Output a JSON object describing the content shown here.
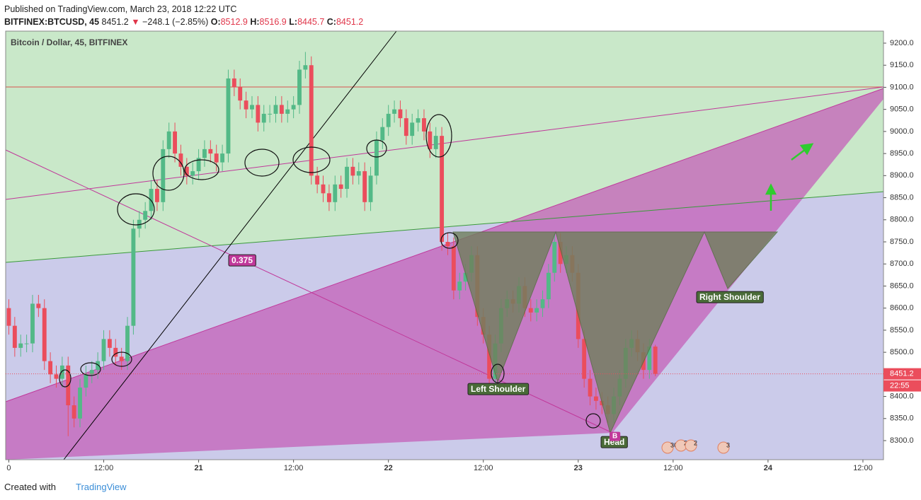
{
  "header": {
    "published": "Published on TradingView.com, March 23, 2018 12:22 UTC",
    "symbol": "BITFINEX:BTCUSD, 45",
    "price": "8451.2",
    "arrow": "▼",
    "change": "−248.1 (−2.85%)",
    "ohlc": [
      {
        "key": "O:",
        "value": "8512.9"
      },
      {
        "key": "H:",
        "value": "8516.9"
      },
      {
        "key": "L:",
        "value": "8445.7"
      },
      {
        "key": "C:",
        "value": "8451.2"
      }
    ]
  },
  "chart_data": {
    "type": "candlestick",
    "title": "Bitcoin / Dollar, 45, BITFINEX",
    "x": [
      0,
      0.75,
      1.5,
      2.25,
      3,
      3.75,
      4.5,
      5.25,
      6,
      6.75,
      7.5,
      8.25,
      9,
      9.75,
      10.5,
      11.25,
      12,
      12.75,
      13.5,
      14.25,
      15,
      15.75,
      16.5,
      17.25,
      18,
      18.75,
      19.5,
      20.25,
      21,
      21.75,
      22.5,
      23.25,
      24,
      24.75,
      25.5,
      26.25,
      27,
      27.75,
      28.5,
      29.25,
      30,
      30.75,
      31.5,
      32.25,
      33,
      33.75,
      34.5,
      35.25,
      36,
      36.75,
      37.5,
      38.25,
      39,
      39.75,
      40.5,
      41.25,
      42,
      42.75,
      43.5,
      44.25,
      45,
      45.75,
      46.5,
      47.25,
      48,
      48.75,
      49.5,
      50.25,
      51,
      51.75,
      52.5,
      53.25,
      54,
      54.75,
      55.5,
      56.25,
      57,
      57.75,
      58.5,
      59.25,
      60,
      60.75,
      61.5,
      62.25,
      63,
      63.75,
      64.5,
      65.25,
      66,
      66.75,
      67.5,
      68.25,
      69,
      69.75,
      70.5,
      71.25,
      72,
      72.75,
      73.5,
      74.25,
      75,
      75.75,
      76.5,
      77.25,
      78,
      78.75,
      79.5,
      80.25,
      81,
      81.75
    ],
    "open": [
      8600,
      8560,
      8510,
      8520,
      8520,
      8610,
      8600,
      8480,
      8450,
      8440,
      8470,
      8380,
      8350,
      8420,
      8450,
      8460,
      8480,
      8530,
      8510,
      8490,
      8480,
      8560,
      8780,
      8800,
      8820,
      8870,
      8840,
      8960,
      9000,
      8950,
      8920,
      8900,
      8910,
      8940,
      8960,
      8950,
      8930,
      8950,
      9120,
      9100,
      9070,
      9050,
      9060,
      9020,
      9040,
      9040,
      9060,
      9040,
      9050,
      9060,
      9140,
      9150,
      8900,
      8880,
      8860,
      8840,
      8880,
      8870,
      8920,
      8900,
      8910,
      8840,
      8900,
      8980,
      9010,
      9040,
      9050,
      9030,
      8990,
      9020,
      9030,
      9000,
      8960,
      8990,
      8750,
      8740,
      8640,
      8660,
      8680,
      8720,
      8580,
      8540,
      8440,
      8520,
      8600,
      8620,
      8610,
      8650,
      8600,
      8590,
      8600,
      8620,
      8680,
      8750,
      8700,
      8720,
      8680,
      8530,
      8440,
      8400,
      8390,
      8380,
      8360,
      8400,
      8440,
      8510,
      8530,
      8500,
      8460,
      8512.9
    ],
    "high": [
      8620,
      8580,
      8540,
      8540,
      8630,
      8630,
      8620,
      8500,
      8470,
      8490,
      8490,
      8400,
      8440,
      8470,
      8480,
      8500,
      8550,
      8550,
      8530,
      8510,
      8580,
      8800,
      8820,
      8840,
      8890,
      8890,
      8980,
      9020,
      9020,
      8970,
      8940,
      8930,
      8960,
      8980,
      8980,
      8970,
      8970,
      9140,
      9140,
      9120,
      9090,
      9080,
      9080,
      9060,
      9060,
      9080,
      9080,
      9070,
      9080,
      9160,
      9180,
      9170,
      8920,
      8900,
      8880,
      8900,
      8900,
      8940,
      8940,
      8930,
      8930,
      8920,
      9000,
      9030,
      9060,
      9070,
      9070,
      9050,
      9040,
      9050,
      9050,
      9020,
      9010,
      9010,
      8770,
      8760,
      8680,
      8700,
      8740,
      8740,
      8600,
      8560,
      8540,
      8620,
      8640,
      8640,
      8670,
      8670,
      8620,
      8620,
      8640,
      8700,
      8770,
      8770,
      8740,
      8740,
      8700,
      8550,
      8460,
      8420,
      8410,
      8400,
      8420,
      8460,
      8530,
      8550,
      8550,
      8520,
      8530,
      8516.9
    ],
    "low": [
      8540,
      8490,
      8490,
      8500,
      8500,
      8580,
      8460,
      8430,
      8420,
      8420,
      8310,
      8330,
      8330,
      8400,
      8430,
      8440,
      8460,
      8490,
      8470,
      8460,
      8460,
      8540,
      8760,
      8780,
      8800,
      8820,
      8820,
      8940,
      8930,
      8900,
      8880,
      8880,
      8890,
      8920,
      8930,
      8910,
      8910,
      8930,
      9080,
      9050,
      9030,
      9030,
      9000,
      9000,
      9020,
      9020,
      9020,
      9020,
      9030,
      9040,
      9120,
      8880,
      8860,
      8840,
      8820,
      8820,
      8850,
      8850,
      8880,
      8880,
      8820,
      8820,
      8880,
      8960,
      8990,
      9020,
      9010,
      8970,
      8970,
      9000,
      8980,
      8940,
      8940,
      8730,
      8720,
      8620,
      8620,
      8640,
      8660,
      8560,
      8520,
      8420,
      8420,
      8500,
      8580,
      8590,
      8590,
      8580,
      8570,
      8570,
      8580,
      8600,
      8660,
      8680,
      8680,
      8660,
      8510,
      8420,
      8380,
      8370,
      8360,
      8340,
      8340,
      8380,
      8420,
      8490,
      8480,
      8440,
      8440,
      8445.7
    ],
    "close": [
      8560,
      8510,
      8520,
      8520,
      8610,
      8600,
      8480,
      8450,
      8440,
      8470,
      8380,
      8350,
      8420,
      8450,
      8460,
      8480,
      8530,
      8510,
      8490,
      8480,
      8560,
      8780,
      8800,
      8820,
      8870,
      8840,
      8960,
      9000,
      8950,
      8920,
      8900,
      8910,
      8940,
      8960,
      8950,
      8930,
      8950,
      9120,
      9100,
      9070,
      9050,
      9060,
      9020,
      9040,
      9040,
      9060,
      9040,
      9050,
      9060,
      9140,
      9150,
      8900,
      8880,
      8860,
      8840,
      8880,
      8870,
      8920,
      8900,
      8910,
      8840,
      8900,
      8980,
      9010,
      9040,
      9050,
      9030,
      8990,
      9020,
      9030,
      9000,
      8960,
      8990,
      8750,
      8740,
      8640,
      8660,
      8680,
      8720,
      8580,
      8540,
      8440,
      8520,
      8600,
      8620,
      8610,
      8650,
      8600,
      8590,
      8600,
      8620,
      8680,
      8750,
      8700,
      8720,
      8680,
      8530,
      8440,
      8400,
      8390,
      8380,
      8360,
      8400,
      8440,
      8510,
      8530,
      8500,
      8460,
      8512.9,
      8451.2
    ],
    "up_color": "#53b987",
    "down_color": "#eb4d5c",
    "xlim": [
      -0.4,
      110.6
    ],
    "xticks": [
      0,
      {
        "value": 12,
        "label": "12:00"
      },
      {
        "value": 24,
        "label": "21"
      },
      {
        "value": 36,
        "label": "12:00"
      },
      {
        "value": 48,
        "label": "22"
      },
      {
        "value": 60,
        "label": "12:00"
      },
      {
        "value": 72,
        "label": "23"
      },
      {
        "value": 84,
        "label": "12:00"
      },
      {
        "value": 96,
        "label": "24"
      },
      {
        "value": 108,
        "label": "12:00"
      }
    ],
    "ylim": [
      8256.8,
      9227.2
    ],
    "yticks": [
      {
        "value": 8300,
        "label": "8300.0"
      },
      {
        "value": 8350,
        "label": "8350.0"
      },
      {
        "value": 8400,
        "label": "8400.0"
      },
      {
        "value": 8450,
        "label": "8450.0"
      },
      {
        "value": 8500,
        "label": "8500.0"
      },
      {
        "value": 8550,
        "label": "8550.0"
      },
      {
        "value": 8600,
        "label": "8600.0"
      },
      {
        "value": 8650,
        "label": "8650.0"
      },
      {
        "value": 8700,
        "label": "8700.0"
      },
      {
        "value": 8750,
        "label": "8750.0"
      },
      {
        "value": 8800,
        "label": "8800.0"
      },
      {
        "value": 8850,
        "label": "8850.0"
      },
      {
        "value": 8900,
        "label": "8900.0"
      },
      {
        "value": 8950,
        "label": "8950.0"
      },
      {
        "value": 9000,
        "label": "9000.0"
      },
      {
        "value": 9050,
        "label": "9050.0"
      },
      {
        "value": 9100,
        "label": "9100.0"
      },
      {
        "value": 9150,
        "label": "9150.0"
      },
      {
        "value": 9200,
        "label": "9200.0"
      }
    ],
    "last_price": 8451.2,
    "countdown": "22:55",
    "annotations": [
      "0.375",
      "Left Shoulder",
      "Head",
      "Right Shoulder",
      "B"
    ],
    "events": [
      "30",
      "2",
      "2",
      "3"
    ]
  },
  "footer": {
    "created": "Created with",
    "brand": "TradingView"
  }
}
